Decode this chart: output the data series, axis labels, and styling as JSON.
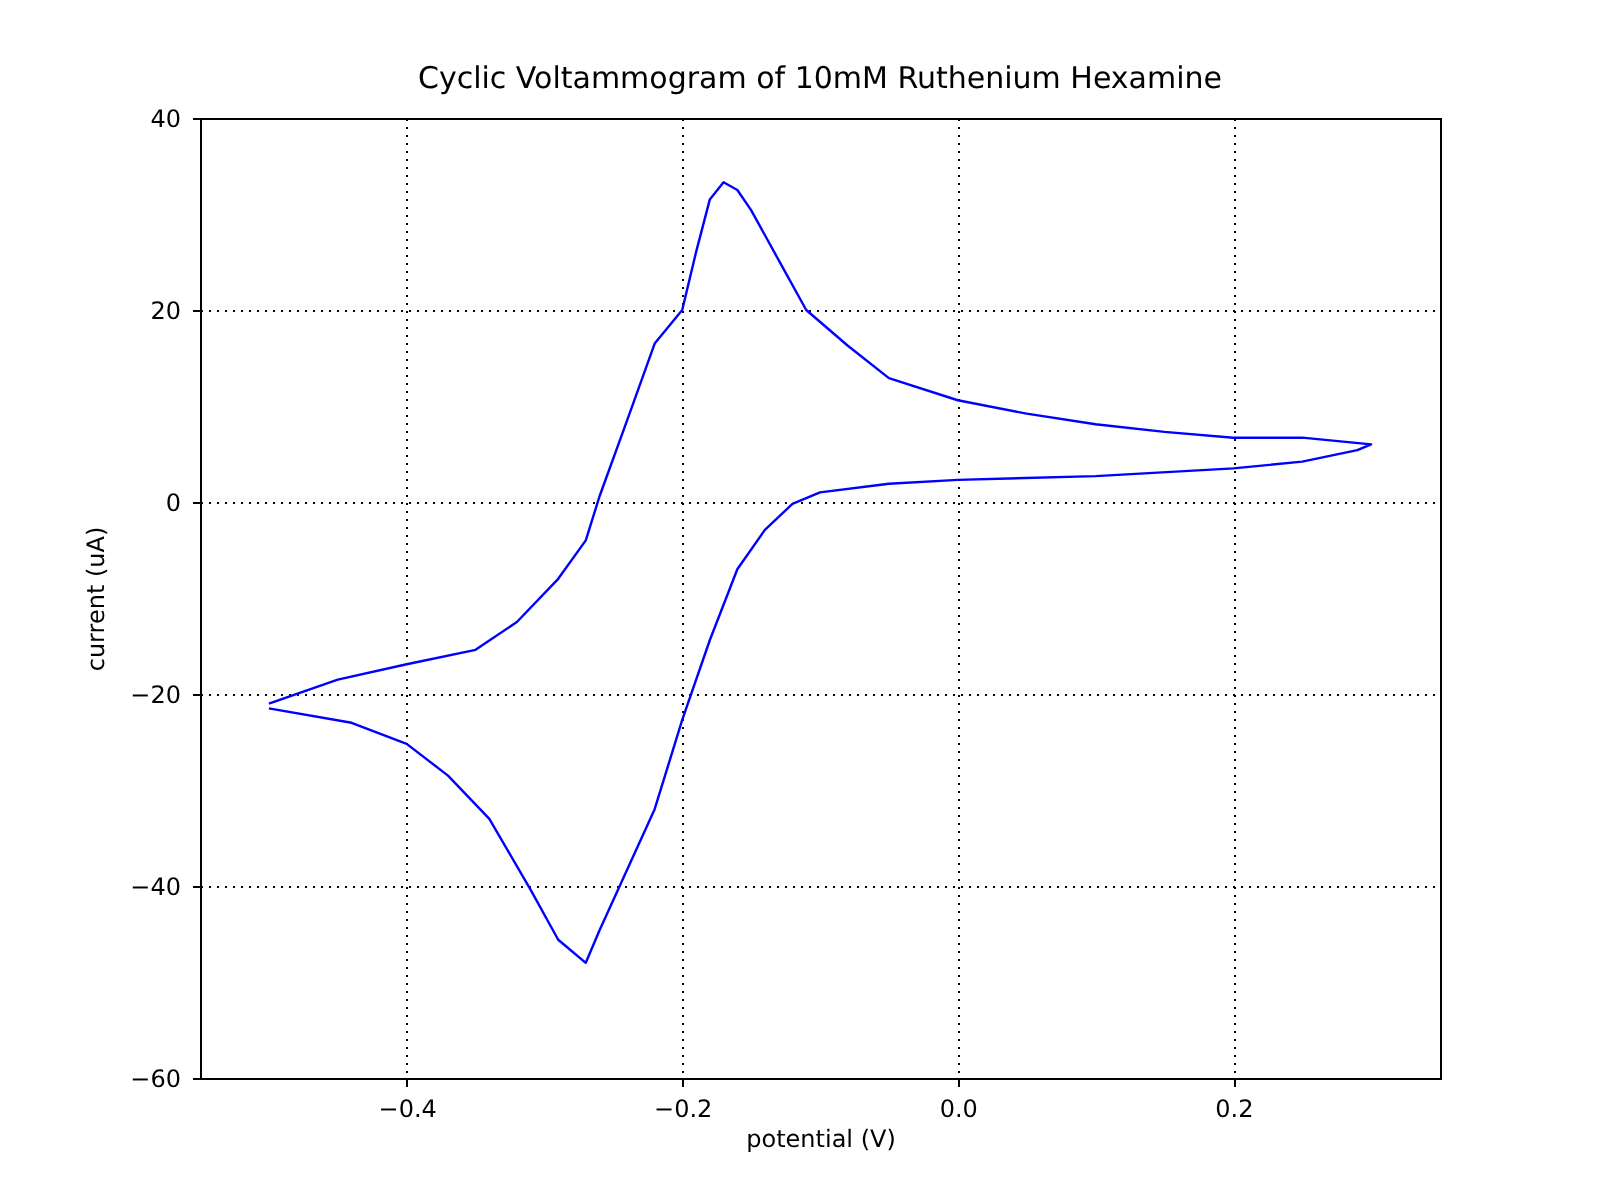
{
  "chart_data": {
    "type": "line",
    "title": "Cyclic Voltammogram of 10mM Ruthenium Hexamine",
    "xlabel": "potential (V)",
    "ylabel": "current (uA)",
    "x": [
      -0.5,
      -0.45,
      -0.4,
      -0.35,
      -0.32,
      -0.29,
      -0.27,
      -0.26,
      -0.24,
      -0.22,
      -0.2,
      -0.19,
      -0.18,
      -0.17,
      -0.16,
      -0.15,
      -0.13,
      -0.11,
      -0.08,
      -0.05,
      0.0,
      0.05,
      0.1,
      0.15,
      0.2,
      0.25,
      0.3,
      0.29,
      0.25,
      0.2,
      0.1,
      0.0,
      -0.05,
      -0.1,
      -0.12,
      -0.14,
      -0.16,
      -0.18,
      -0.2,
      -0.22,
      -0.24,
      -0.26,
      -0.27,
      -0.29,
      -0.31,
      -0.34,
      -0.37,
      -0.4,
      -0.44,
      -0.5
    ],
    "series": [
      {
        "color": "#0000ff",
        "values": [
          -21,
          -18.5,
          -16.9,
          -15.4,
          -12.5,
          -8,
          -4,
          0.6,
          8.5,
          16.5,
          20,
          26,
          31.5,
          33.3,
          32.5,
          30.4,
          25.2,
          20,
          16.3,
          12.9,
          10.6,
          9.2,
          8.1,
          7.3,
          6.7,
          6.7,
          6,
          5.4,
          4.2,
          3.5,
          2.7,
          2.3,
          1.9,
          1,
          -0.2,
          -2.9,
          -7,
          -14.4,
          -22.7,
          -32,
          -38.3,
          -44.6,
          -48,
          -45.6,
          -40.4,
          -33,
          -28.5,
          -25.2,
          -23,
          -21.5
        ]
      }
    ],
    "xlim": [
      -0.55,
      0.35
    ],
    "xticks": [
      {
        "value": -0.4,
        "label": "−0.4"
      },
      {
        "value": -0.2,
        "label": "−0.2"
      },
      {
        "value": 0,
        "label": "0.0"
      },
      {
        "value": 0.2,
        "label": "0.2"
      }
    ],
    "ylim": [
      -60,
      40
    ],
    "yticks": [
      {
        "value": -60,
        "label": "−60"
      },
      {
        "value": -40,
        "label": "−40"
      },
      {
        "value": -20,
        "label": "−20"
      },
      0,
      20,
      40
    ],
    "grid": true,
    "line_style": "solid"
  }
}
